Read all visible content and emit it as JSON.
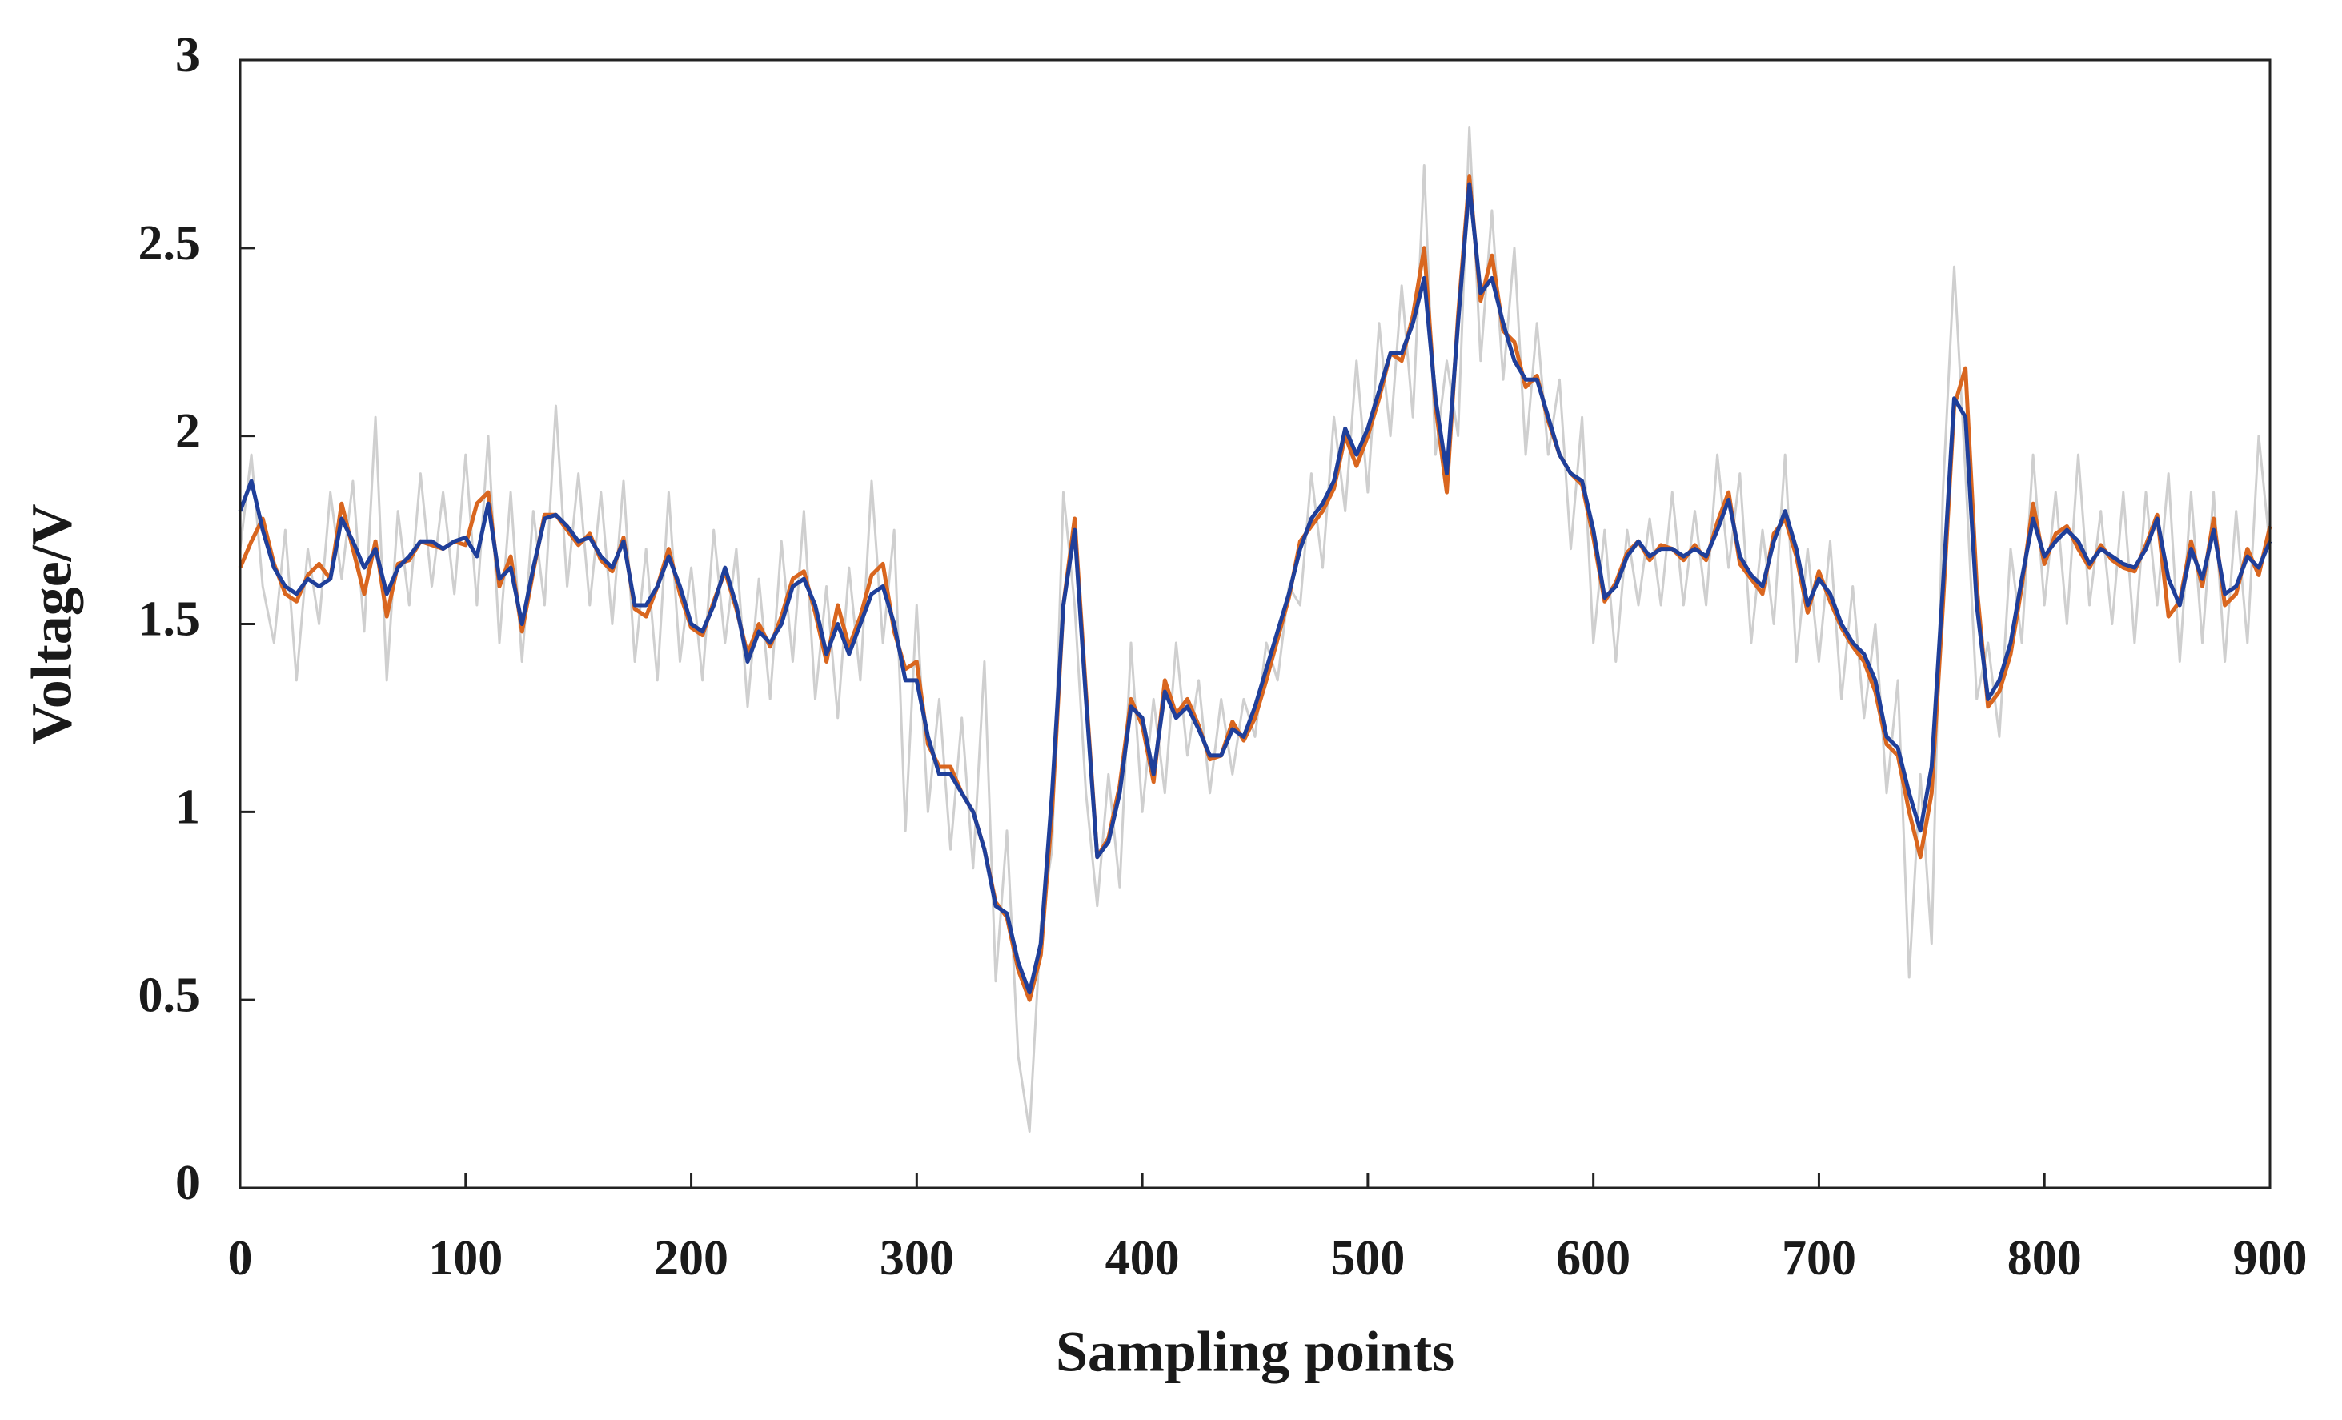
{
  "chart_data": {
    "type": "line",
    "xlabel": "Sampling points",
    "ylabel": "Voltage/V",
    "xlim": [
      0,
      900
    ],
    "xticks": [
      0,
      100,
      200,
      300,
      400,
      500,
      600,
      700,
      800,
      900
    ],
    "ylim": [
      0,
      3
    ],
    "yticks": [
      0,
      0.5,
      1,
      1.5,
      2,
      2.5,
      3
    ],
    "x": [
      0,
      5,
      10,
      15,
      20,
      25,
      30,
      35,
      40,
      45,
      50,
      55,
      60,
      65,
      70,
      75,
      80,
      85,
      90,
      95,
      100,
      105,
      110,
      115,
      120,
      125,
      130,
      135,
      140,
      145,
      150,
      155,
      160,
      165,
      170,
      175,
      180,
      185,
      190,
      195,
      200,
      205,
      210,
      215,
      220,
      225,
      230,
      235,
      240,
      245,
      250,
      255,
      260,
      265,
      270,
      275,
      280,
      285,
      290,
      295,
      300,
      305,
      310,
      315,
      320,
      325,
      330,
      335,
      340,
      345,
      350,
      355,
      360,
      365,
      370,
      375,
      380,
      385,
      390,
      395,
      400,
      405,
      410,
      415,
      420,
      425,
      430,
      435,
      440,
      445,
      450,
      455,
      460,
      465,
      470,
      475,
      480,
      485,
      490,
      495,
      500,
      505,
      510,
      515,
      520,
      525,
      530,
      535,
      540,
      545,
      550,
      555,
      560,
      565,
      570,
      575,
      580,
      585,
      590,
      595,
      600,
      605,
      610,
      615,
      620,
      625,
      630,
      635,
      640,
      645,
      650,
      655,
      660,
      665,
      670,
      675,
      680,
      685,
      690,
      695,
      700,
      705,
      710,
      715,
      720,
      725,
      730,
      735,
      740,
      745,
      750,
      755,
      760,
      765,
      770,
      775,
      780,
      785,
      790,
      795,
      800,
      805,
      810,
      815,
      820,
      825,
      830,
      835,
      840,
      845,
      850,
      855,
      860,
      865,
      870,
      875,
      880,
      885,
      890,
      895,
      900
    ],
    "series": [
      {
        "color": "#cfcfcf",
        "values": [
          1.7,
          1.95,
          1.6,
          1.45,
          1.75,
          1.35,
          1.7,
          1.5,
          1.85,
          1.62,
          1.88,
          1.48,
          2.05,
          1.35,
          1.8,
          1.55,
          1.9,
          1.6,
          1.85,
          1.58,
          1.95,
          1.55,
          2.0,
          1.45,
          1.85,
          1.4,
          1.8,
          1.55,
          2.08,
          1.6,
          1.9,
          1.55,
          1.85,
          1.5,
          1.88,
          1.4,
          1.7,
          1.35,
          1.85,
          1.4,
          1.65,
          1.35,
          1.75,
          1.45,
          1.7,
          1.28,
          1.62,
          1.3,
          1.72,
          1.4,
          1.8,
          1.3,
          1.6,
          1.25,
          1.65,
          1.35,
          1.88,
          1.45,
          1.75,
          0.95,
          1.55,
          1.0,
          1.3,
          0.9,
          1.25,
          0.85,
          1.4,
          0.55,
          0.95,
          0.35,
          0.15,
          0.7,
          0.9,
          1.85,
          1.55,
          1.05,
          0.75,
          1.1,
          0.8,
          1.45,
          1.0,
          1.3,
          1.05,
          1.45,
          1.15,
          1.35,
          1.05,
          1.3,
          1.1,
          1.3,
          1.2,
          1.45,
          1.35,
          1.6,
          1.55,
          1.9,
          1.65,
          2.05,
          1.8,
          2.2,
          1.85,
          2.3,
          2.0,
          2.4,
          2.05,
          2.72,
          1.95,
          2.2,
          2.0,
          2.82,
          2.2,
          2.6,
          2.15,
          2.5,
          1.95,
          2.3,
          1.95,
          2.15,
          1.7,
          2.05,
          1.45,
          1.75,
          1.4,
          1.75,
          1.55,
          1.78,
          1.55,
          1.85,
          1.55,
          1.8,
          1.55,
          1.95,
          1.65,
          1.9,
          1.45,
          1.75,
          1.5,
          1.95,
          1.4,
          1.7,
          1.4,
          1.72,
          1.3,
          1.6,
          1.25,
          1.5,
          1.05,
          1.35,
          0.56,
          1.1,
          0.65,
          1.85,
          2.45,
          1.9,
          1.3,
          1.45,
          1.2,
          1.7,
          1.45,
          1.95,
          1.55,
          1.85,
          1.5,
          1.95,
          1.55,
          1.8,
          1.5,
          1.85,
          1.45,
          1.85,
          1.55,
          1.9,
          1.4,
          1.85,
          1.45,
          1.85,
          1.4,
          1.8,
          1.45,
          2.0,
          1.7
        ]
      },
      {
        "color": "#d9661f",
        "values": [
          1.65,
          1.72,
          1.78,
          1.66,
          1.58,
          1.56,
          1.63,
          1.66,
          1.62,
          1.82,
          1.7,
          1.58,
          1.72,
          1.52,
          1.66,
          1.67,
          1.72,
          1.71,
          1.7,
          1.72,
          1.71,
          1.82,
          1.85,
          1.6,
          1.68,
          1.48,
          1.64,
          1.79,
          1.79,
          1.75,
          1.71,
          1.74,
          1.67,
          1.64,
          1.73,
          1.54,
          1.52,
          1.6,
          1.7,
          1.58,
          1.49,
          1.47,
          1.56,
          1.64,
          1.54,
          1.42,
          1.5,
          1.44,
          1.52,
          1.62,
          1.64,
          1.53,
          1.4,
          1.55,
          1.44,
          1.52,
          1.63,
          1.66,
          1.48,
          1.38,
          1.4,
          1.18,
          1.12,
          1.12,
          1.05,
          1.0,
          0.9,
          0.76,
          0.72,
          0.58,
          0.5,
          0.62,
          1.0,
          1.55,
          1.78,
          1.32,
          0.88,
          0.93,
          1.07,
          1.3,
          1.23,
          1.08,
          1.35,
          1.26,
          1.3,
          1.23,
          1.14,
          1.15,
          1.24,
          1.19,
          1.25,
          1.35,
          1.46,
          1.57,
          1.72,
          1.76,
          1.8,
          1.86,
          2.0,
          1.92,
          2.0,
          2.1,
          2.22,
          2.2,
          2.32,
          2.5,
          2.08,
          1.85,
          2.32,
          2.69,
          2.36,
          2.48,
          2.28,
          2.25,
          2.13,
          2.16,
          2.04,
          1.95,
          1.9,
          1.87,
          1.73,
          1.56,
          1.61,
          1.69,
          1.72,
          1.67,
          1.71,
          1.7,
          1.67,
          1.71,
          1.67,
          1.77,
          1.85,
          1.66,
          1.62,
          1.58,
          1.74,
          1.78,
          1.68,
          1.53,
          1.64,
          1.56,
          1.49,
          1.44,
          1.4,
          1.32,
          1.18,
          1.15,
          1.0,
          0.88,
          1.05,
          1.55,
          2.08,
          2.18,
          1.6,
          1.28,
          1.32,
          1.42,
          1.6,
          1.82,
          1.66,
          1.74,
          1.76,
          1.7,
          1.65,
          1.71,
          1.67,
          1.65,
          1.64,
          1.71,
          1.79,
          1.52,
          1.56,
          1.72,
          1.6,
          1.78,
          1.55,
          1.58,
          1.7,
          1.63,
          1.76
        ]
      },
      {
        "color": "#1f3f9a",
        "values": [
          1.8,
          1.88,
          1.75,
          1.65,
          1.6,
          1.58,
          1.62,
          1.6,
          1.62,
          1.78,
          1.72,
          1.65,
          1.7,
          1.58,
          1.65,
          1.68,
          1.72,
          1.72,
          1.7,
          1.72,
          1.73,
          1.68,
          1.82,
          1.62,
          1.65,
          1.5,
          1.65,
          1.78,
          1.79,
          1.76,
          1.72,
          1.73,
          1.68,
          1.65,
          1.72,
          1.55,
          1.55,
          1.6,
          1.68,
          1.6,
          1.5,
          1.48,
          1.55,
          1.65,
          1.55,
          1.4,
          1.48,
          1.45,
          1.5,
          1.6,
          1.62,
          1.55,
          1.42,
          1.5,
          1.42,
          1.5,
          1.58,
          1.6,
          1.5,
          1.35,
          1.35,
          1.2,
          1.1,
          1.1,
          1.05,
          1.0,
          0.9,
          0.75,
          0.73,
          0.6,
          0.52,
          0.65,
          1.05,
          1.55,
          1.75,
          1.3,
          0.88,
          0.92,
          1.05,
          1.28,
          1.25,
          1.1,
          1.32,
          1.25,
          1.28,
          1.22,
          1.15,
          1.15,
          1.22,
          1.2,
          1.28,
          1.38,
          1.48,
          1.58,
          1.7,
          1.78,
          1.82,
          1.88,
          2.02,
          1.95,
          2.02,
          2.12,
          2.22,
          2.22,
          2.3,
          2.42,
          2.1,
          1.9,
          2.3,
          2.67,
          2.38,
          2.42,
          2.3,
          2.2,
          2.15,
          2.15,
          2.05,
          1.95,
          1.9,
          1.88,
          1.75,
          1.57,
          1.6,
          1.68,
          1.72,
          1.68,
          1.7,
          1.7,
          1.68,
          1.7,
          1.68,
          1.75,
          1.83,
          1.68,
          1.63,
          1.6,
          1.72,
          1.8,
          1.7,
          1.55,
          1.62,
          1.58,
          1.5,
          1.45,
          1.42,
          1.35,
          1.2,
          1.17,
          1.05,
          0.95,
          1.12,
          1.6,
          2.1,
          2.05,
          1.55,
          1.3,
          1.35,
          1.45,
          1.62,
          1.78,
          1.68,
          1.72,
          1.75,
          1.72,
          1.66,
          1.7,
          1.68,
          1.66,
          1.65,
          1.7,
          1.78,
          1.62,
          1.55,
          1.7,
          1.62,
          1.75,
          1.58,
          1.6,
          1.68,
          1.65,
          1.72
        ]
      }
    ]
  }
}
